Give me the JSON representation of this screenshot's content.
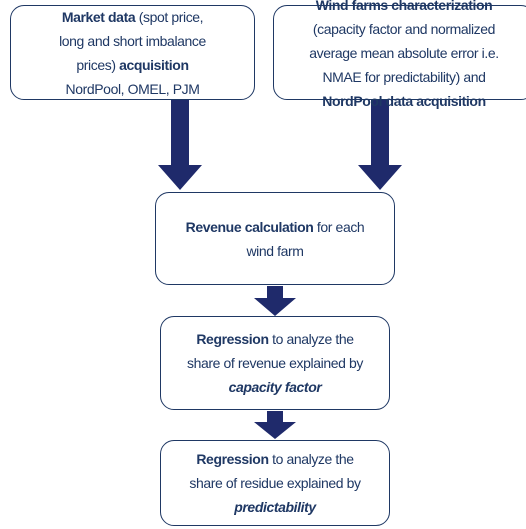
{
  "nodes": [
    {
      "lines": [
        [
          {
            "text": "Market data",
            "style": "bold"
          },
          {
            "text": " (spot price,"
          }
        ],
        [
          {
            "text": "long and short imbalance"
          }
        ],
        [
          {
            "text": "prices) "
          },
          {
            "text": "acquisition",
            "style": "bold"
          }
        ],
        [
          {
            "text": "NordPool, OMEL, PJM"
          }
        ]
      ]
    },
    {
      "lines": [
        [
          {
            "text": "Wind farms characterization",
            "style": "bold"
          }
        ],
        [
          {
            "text": "(capacity factor and normalized"
          }
        ],
        [
          {
            "text": "average mean absolute error i.e."
          }
        ],
        [
          {
            "text": "NMAE for predictability) and"
          }
        ],
        [
          {
            "text": "NordPool data acquisition",
            "style": "bold"
          }
        ]
      ]
    },
    {
      "lines": [
        [
          {
            "text": "Revenue calculation",
            "style": "bold"
          },
          {
            "text": " for each"
          }
        ],
        [
          {
            "text": "wind farm"
          }
        ]
      ]
    },
    {
      "lines": [
        [
          {
            "text": "Regression",
            "style": "bold"
          },
          {
            "text": " to analyze the"
          }
        ],
        [
          {
            "text": "share of revenue explained by"
          }
        ],
        [
          {
            "text": "capacity factor",
            "style": "bold-italic"
          }
        ]
      ]
    },
    {
      "lines": [
        [
          {
            "text": "Regression",
            "style": "bold"
          },
          {
            "text": " to analyze the"
          }
        ],
        [
          {
            "text": "share of residue explained by"
          }
        ],
        [
          {
            "text": "predictability",
            "style": "bold-italic"
          }
        ]
      ]
    }
  ]
}
